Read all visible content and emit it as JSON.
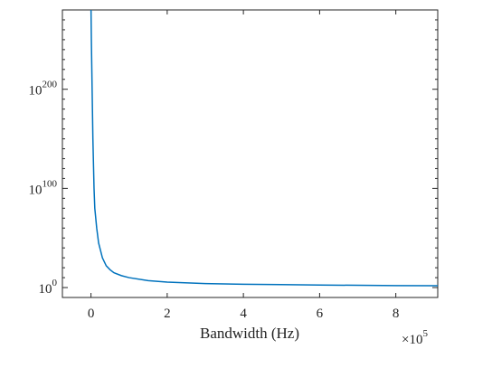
{
  "chart_data": {
    "type": "line",
    "title": "",
    "xlabel": "Bandwidth (Hz)",
    "ylabel": "",
    "x_multiplier": {
      "base": "×10",
      "exponent": "5"
    },
    "x_scale": "linear",
    "y_scale": "log",
    "xlim": [
      -0.75,
      9.1
    ],
    "ylim_log10": [
      -10,
      280
    ],
    "x_ticks": [
      {
        "value": 0,
        "label": "0"
      },
      {
        "value": 2,
        "label": "2"
      },
      {
        "value": 4,
        "label": "4"
      },
      {
        "value": 6,
        "label": "6"
      },
      {
        "value": 8,
        "label": "8"
      }
    ],
    "y_ticks": [
      {
        "log10": 0,
        "base": "10",
        "exp": "0"
      },
      {
        "log10": 100,
        "base": "10",
        "exp": "100"
      },
      {
        "log10": 200,
        "base": "10",
        "exp": "200"
      }
    ],
    "grid": false,
    "legend": "none",
    "color": "#0072BD",
    "series": [
      {
        "x_units": "×10^5 Hz",
        "points": [
          [
            0.001,
            280
          ],
          [
            0.01,
            250
          ],
          [
            0.03,
            200
          ],
          [
            0.05,
            150
          ],
          [
            0.08,
            100
          ],
          [
            0.1,
            80
          ],
          [
            0.15,
            60
          ],
          [
            0.2,
            45
          ],
          [
            0.3,
            30
          ],
          [
            0.4,
            22
          ],
          [
            0.5,
            18
          ],
          [
            0.6,
            15
          ],
          [
            0.8,
            12
          ],
          [
            1.0,
            10
          ],
          [
            1.5,
            7
          ],
          [
            2.0,
            5.5
          ],
          [
            3.0,
            4
          ],
          [
            4.0,
            3.3
          ],
          [
            5.0,
            3
          ],
          [
            6.0,
            2.5
          ],
          [
            7.0,
            2.3
          ],
          [
            8.0,
            2
          ],
          [
            9.1,
            1.8
          ]
        ]
      }
    ]
  }
}
